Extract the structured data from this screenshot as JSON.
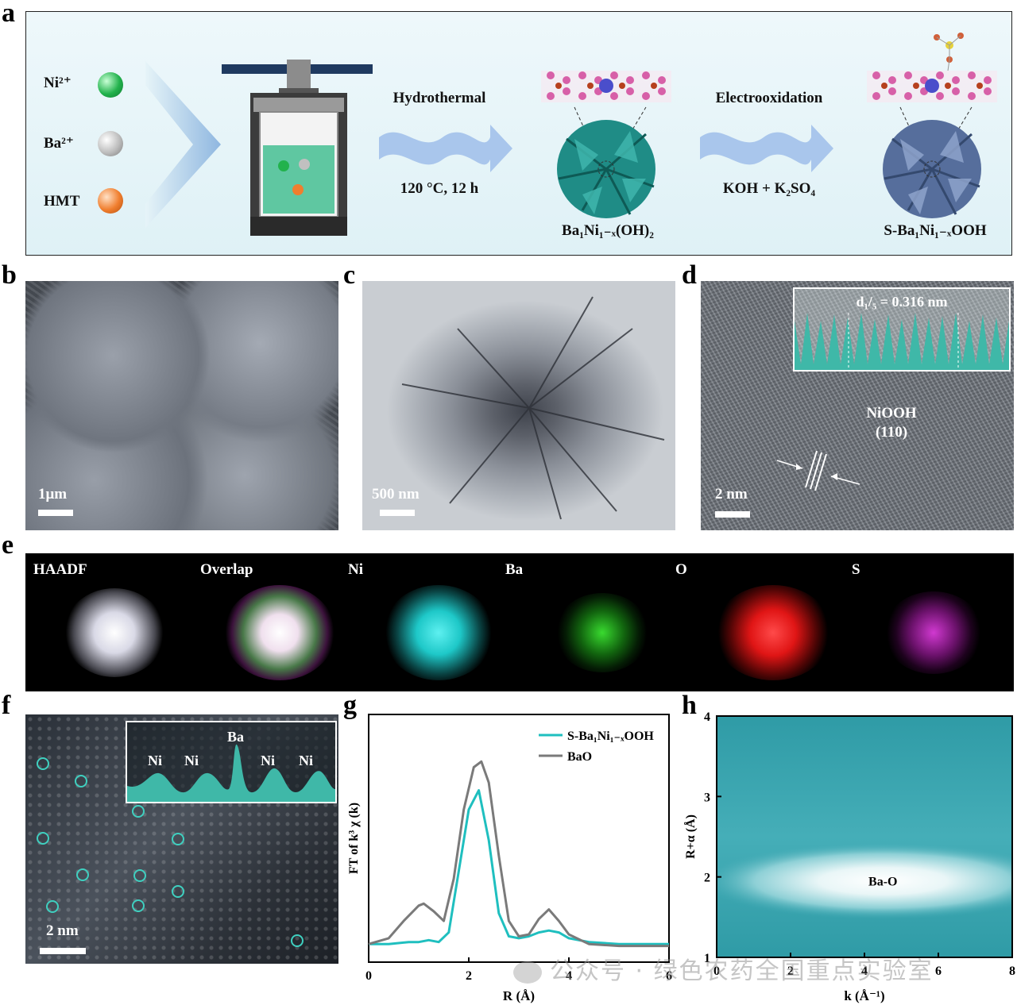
{
  "panel_labels": {
    "a": "a",
    "b": "b",
    "c": "c",
    "d": "d",
    "e": "e",
    "f": "f",
    "g": "g",
    "h": "h"
  },
  "panel_a": {
    "ions": [
      {
        "label": "Ni²⁺",
        "color": "#22b24c"
      },
      {
        "label": "Ba²⁺",
        "color": "#b9b9b9"
      },
      {
        "label": "HMT",
        "color": "#f07e2e"
      }
    ],
    "step1_top": "Hydrothermal",
    "step1_bottom": "120 °C, 12 h",
    "product1": "Ba₁Ni₁₋ₓ(OH)₂",
    "step2_top": "Electrooxidation",
    "step2_bottom": "KOH + K₂SO₄",
    "product2": "S-Ba₁Ni₁₋ₓOOH"
  },
  "panel_b": {
    "scale": "1μm"
  },
  "panel_c": {
    "scale": "500 nm"
  },
  "panel_d": {
    "scale": "2 nm",
    "d_spacing": "d₁/₅ = 0.316 nm",
    "phase": "NiOOH",
    "plane": "(110)"
  },
  "panel_e": {
    "maps": [
      {
        "label": "HAADF",
        "color": "#e8e8f0"
      },
      {
        "label": "Overlap",
        "color": "#f4e6f0"
      },
      {
        "label": "Ni",
        "color": "#1ec8c8"
      },
      {
        "label": "Ba",
        "color": "#22c41c"
      },
      {
        "label": "O",
        "color": "#e01515"
      },
      {
        "label": "S",
        "color": "#c020c0"
      }
    ]
  },
  "panel_f": {
    "scale": "2 nm",
    "profile_labels": [
      "Ni",
      "Ni",
      "Ba",
      "Ni",
      "Ni"
    ]
  },
  "chart_data": [
    {
      "type": "line",
      "panel": "g",
      "xlabel": "R (Å)",
      "ylabel": "FT of k³ χ (k)",
      "xlim": [
        0,
        6
      ],
      "xticks": [
        "0",
        "2",
        "4",
        "6"
      ],
      "legend_position": "top-right",
      "series": [
        {
          "name": "S-Ba₁Ni₁₋ₓOOH",
          "color": "#1fbfbf",
          "x": [
            0,
            0.4,
            0.8,
            1.0,
            1.2,
            1.4,
            1.6,
            1.8,
            2.0,
            2.2,
            2.4,
            2.6,
            2.8,
            3.0,
            3.2,
            3.4,
            3.6,
            3.8,
            4.0,
            4.4,
            5.0,
            6.0
          ],
          "y": [
            0.02,
            0.02,
            0.03,
            0.03,
            0.04,
            0.03,
            0.08,
            0.4,
            0.72,
            0.82,
            0.56,
            0.18,
            0.06,
            0.05,
            0.06,
            0.08,
            0.09,
            0.08,
            0.05,
            0.03,
            0.02,
            0.02
          ]
        },
        {
          "name": "BaO",
          "color": "#7a7a7a",
          "x": [
            0,
            0.4,
            0.7,
            1.0,
            1.1,
            1.3,
            1.5,
            1.7,
            1.9,
            2.1,
            2.25,
            2.4,
            2.6,
            2.8,
            3.0,
            3.2,
            3.4,
            3.6,
            3.8,
            4.0,
            4.4,
            5.0,
            6.0
          ],
          "y": [
            0.02,
            0.05,
            0.14,
            0.22,
            0.23,
            0.19,
            0.14,
            0.36,
            0.72,
            0.94,
            0.97,
            0.86,
            0.48,
            0.14,
            0.06,
            0.07,
            0.15,
            0.2,
            0.14,
            0.07,
            0.02,
            0.01,
            0.01
          ]
        }
      ]
    },
    {
      "type": "heatmap",
      "panel": "h",
      "xlabel": "k (Å⁻¹)",
      "ylabel": "R+α (Å)",
      "xlim": [
        0,
        8
      ],
      "ylim": [
        1,
        4
      ],
      "xticks": [
        "0",
        "2",
        "4",
        "6",
        "8"
      ],
      "yticks": [
        "1",
        "2",
        "3",
        "4"
      ],
      "annotation": "Ba-O",
      "peak": {
        "k": 4.5,
        "R": 1.95
      }
    }
  ],
  "watermark": "公众号 · 绿色农药全国重点实验室"
}
